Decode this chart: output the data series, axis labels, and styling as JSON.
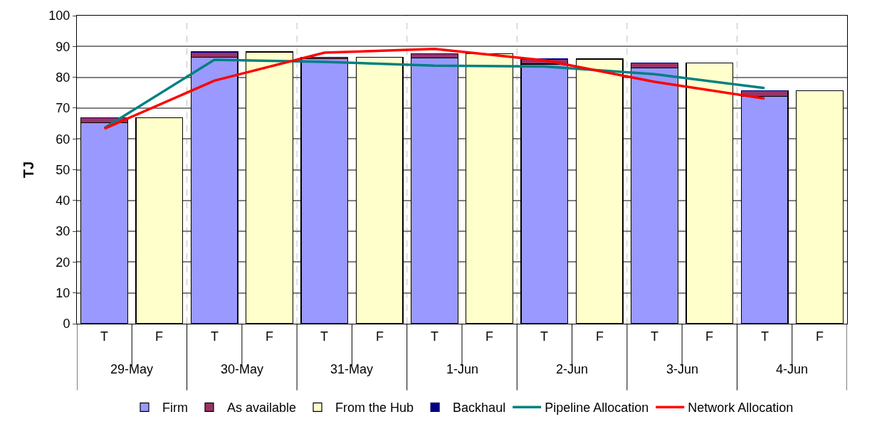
{
  "chart_data": {
    "type": "bar",
    "stacked": true,
    "ylabel": "TJ",
    "categories": [
      "T",
      "F",
      "T",
      "F",
      "T",
      "F",
      "T",
      "F",
      "T",
      "F",
      "T",
      "F",
      "T",
      "F"
    ],
    "annotations": [
      "29-May",
      "30-May",
      "31-May",
      "1-Jun",
      "2-Jun",
      "3-Jun",
      "4-Jun"
    ],
    "series": [
      {
        "name": "Firm",
        "color": "#9999ff",
        "values": [
          65.3,
          null,
          86.5,
          null,
          86.0,
          null,
          86.3,
          null,
          84.3,
          null,
          83.1,
          null,
          73.8,
          null
        ]
      },
      {
        "name": "As available",
        "color": "#993366",
        "values": [
          1.6,
          null,
          1.7,
          null,
          0.5,
          null,
          1.4,
          null,
          1.6,
          null,
          1.5,
          null,
          1.9,
          null
        ]
      },
      {
        "name": "From the Hub",
        "color": "#ffffcc",
        "values": [
          null,
          66.9,
          null,
          88.2,
          null,
          86.5,
          null,
          87.7,
          null,
          85.9,
          null,
          84.6,
          null,
          75.7
        ]
      },
      {
        "name": "Backhaul",
        "color": "#000080",
        "values": [
          0,
          null,
          0,
          null,
          0,
          null,
          0,
          null,
          0,
          null,
          0,
          null,
          0,
          null
        ]
      },
      {
        "name": "Pipeline Allocation",
        "type": "line",
        "color": "#008080",
        "values": [
          63.5,
          null,
          85.7,
          null,
          85.0,
          null,
          83.8,
          null,
          83.5,
          null,
          81.0,
          null,
          76.5,
          null
        ]
      },
      {
        "name": "Network Allocation",
        "type": "line",
        "color": "#ff0000",
        "values": [
          63.3,
          null,
          78.9,
          null,
          88.0,
          null,
          89.2,
          null,
          85.5,
          null,
          78.5,
          null,
          73.1,
          null
        ]
      }
    ],
    "ylim": [
      0,
      100
    ],
    "yticks": [
      0,
      10,
      20,
      30,
      40,
      50,
      60,
      70,
      80,
      90,
      100
    ],
    "grid": "y",
    "legend": "bottom"
  }
}
